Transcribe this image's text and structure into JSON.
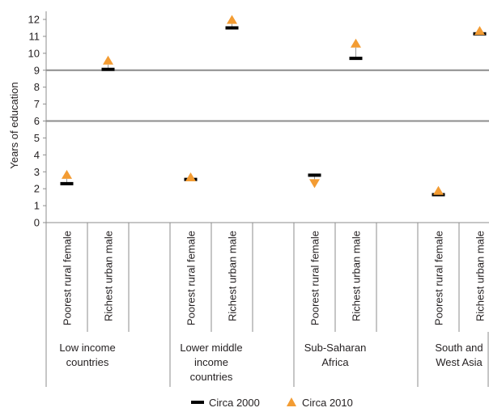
{
  "chart_data": {
    "type": "scatter",
    "ylabel": "Years of education",
    "ylim": [
      0,
      12
    ],
    "yticks": [
      0,
      1,
      2,
      3,
      4,
      5,
      6,
      7,
      8,
      9,
      10,
      11,
      12
    ],
    "reference_lines": [
      6,
      9
    ],
    "groups": [
      {
        "label": "Low income countries",
        "lines": [
          "Low income",
          "countries"
        ]
      },
      {
        "label": "Lower middle income countries",
        "lines": [
          "Lower middle",
          "income",
          "countries"
        ]
      },
      {
        "label": "Sub-Saharan Africa",
        "lines": [
          "Sub-Saharan",
          "Africa"
        ]
      },
      {
        "label": "South and West Asia",
        "lines": [
          "South and",
          "West Asia"
        ]
      }
    ],
    "categories": [
      "Poorest rural female",
      "Richest urban male"
    ],
    "series": [
      {
        "name": "Circa 2000",
        "marker": "dash",
        "color": "#000000",
        "values": [
          2.3,
          9.05,
          2.55,
          11.5,
          2.8,
          9.7,
          1.65,
          11.15
        ]
      },
      {
        "name": "Circa 2010",
        "marker": "triangle",
        "color": "#f39c33",
        "values": [
          2.85,
          9.6,
          2.7,
          12.0,
          2.3,
          10.6,
          1.9,
          11.35
        ]
      }
    ],
    "legend": "bottom"
  }
}
